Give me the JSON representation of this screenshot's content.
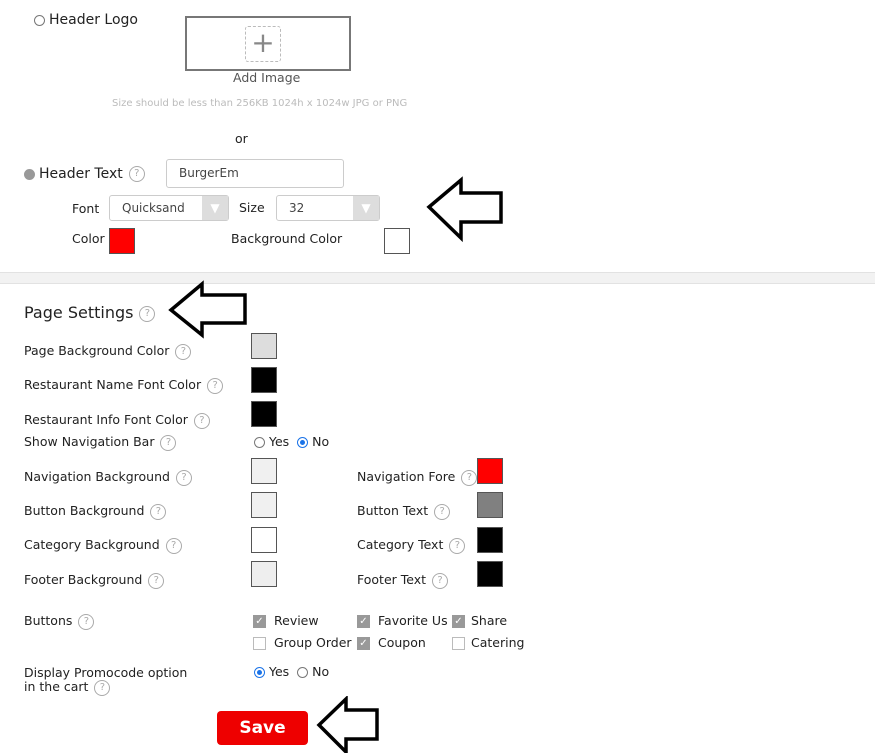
{
  "header": {
    "logo_label": "Header Logo",
    "add_image": "Add Image",
    "size_hint": "Size should be less than 256KB 1024h x 1024w JPG or PNG",
    "or": "or",
    "text_label": "Header Text",
    "text_value": "BurgerEm",
    "font_label": "Font",
    "font_value": "Quicksand",
    "size_label": "Size",
    "size_value": "32",
    "color_label": "Color",
    "color": "#ff0000",
    "bg_color_label": "Background Color",
    "bg_color": "#ffffff",
    "selected": "text"
  },
  "page": {
    "title": "Page Settings",
    "page_bg": {
      "label": "Page Background Color",
      "color": "#dddddd"
    },
    "name_font": {
      "label": "Restaurant Name Font Color",
      "color": "#000000"
    },
    "info_font": {
      "label": "Restaurant Info Font Color",
      "color": "#000000"
    },
    "nav_bar": {
      "label": "Show Navigation Bar",
      "yes": "Yes",
      "no": "No",
      "selected": "No"
    },
    "left": [
      {
        "label": "Navigation Background",
        "color": "#f0f0f0"
      },
      {
        "label": "Button Background",
        "color": "#f0f0f0"
      },
      {
        "label": "Category Background",
        "color": "#ffffff"
      },
      {
        "label": "Footer Background",
        "color": "#eeeeee"
      }
    ],
    "right": [
      {
        "label": "Navigation Fore",
        "color": "#ff0000"
      },
      {
        "label": "Button Text",
        "color": "#808080"
      },
      {
        "label": "Category Text",
        "color": "#000000"
      },
      {
        "label": "Footer Text",
        "color": "#000000"
      }
    ],
    "buttons_label": "Buttons",
    "buttons": [
      {
        "label": "Review",
        "checked": true
      },
      {
        "label": "Favorite Us",
        "checked": true
      },
      {
        "label": "Share",
        "checked": true
      },
      {
        "label": "Group Order",
        "checked": false
      },
      {
        "label": "Coupon",
        "checked": true
      },
      {
        "label": "Catering",
        "checked": false
      }
    ],
    "promo": {
      "line1": "Display Promocode option",
      "line2": "in the cart",
      "yes": "Yes",
      "no": "No",
      "selected": "Yes"
    },
    "save": "Save",
    "help": "?"
  },
  "accent": "#ee0000"
}
